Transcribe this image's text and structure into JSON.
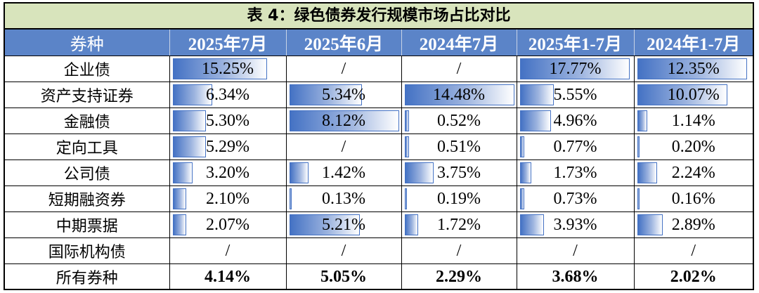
{
  "title": "表 4：绿色债券发行规模市场占比对比",
  "columns": [
    "券种",
    "2025年7月",
    "2025年6月",
    "2024年7月",
    "2025年1-7月",
    "2024年1-7月"
  ],
  "rows": [
    {
      "name": "企业债",
      "values": [
        "15.25%",
        "/",
        "/",
        "17.77%",
        "12.35%"
      ],
      "fills": [
        0.86,
        null,
        null,
        1.0,
        1.0
      ]
    },
    {
      "name": "资产支持证券",
      "values": [
        "6.34%",
        "5.34%",
        "14.48%",
        "5.55%",
        "10.07%"
      ],
      "fills": [
        0.36,
        0.66,
        1.0,
        0.31,
        0.82
      ]
    },
    {
      "name": "金融债",
      "values": [
        "5.30%",
        "8.12%",
        "0.52%",
        "4.96%",
        "1.14%"
      ],
      "fills": [
        0.3,
        1.0,
        0.04,
        0.28,
        0.09
      ]
    },
    {
      "name": "定向工具",
      "values": [
        "5.29%",
        "/",
        "0.51%",
        "0.77%",
        "0.20%"
      ],
      "fills": [
        0.3,
        null,
        0.04,
        0.04,
        0.02
      ]
    },
    {
      "name": "公司债",
      "values": [
        "3.20%",
        "1.42%",
        "3.75%",
        "1.73%",
        "2.24%"
      ],
      "fills": [
        0.18,
        0.17,
        0.26,
        0.1,
        0.18
      ]
    },
    {
      "name": "短期融资券",
      "values": [
        "2.10%",
        "0.13%",
        "0.19%",
        "0.73%",
        "0.16%"
      ],
      "fills": [
        0.12,
        0.02,
        0.01,
        0.04,
        0.01
      ]
    },
    {
      "name": "中期票据",
      "values": [
        "2.07%",
        "5.21%",
        "1.72%",
        "3.93%",
        "2.89%"
      ],
      "fills": [
        0.12,
        0.64,
        0.12,
        0.22,
        0.23
      ]
    },
    {
      "name": "国际机构债",
      "values": [
        "/",
        "/",
        "/",
        "/",
        "/"
      ],
      "fills": [
        null,
        null,
        null,
        null,
        null
      ]
    }
  ],
  "total": {
    "name": "所有券种",
    "values": [
      "4.14%",
      "5.05%",
      "2.29%",
      "3.68%",
      "2.02%"
    ]
  },
  "colors": {
    "header_bg": "#5b84c8",
    "title_bg": "#d8e4bc",
    "bar": "#4472c4"
  }
}
